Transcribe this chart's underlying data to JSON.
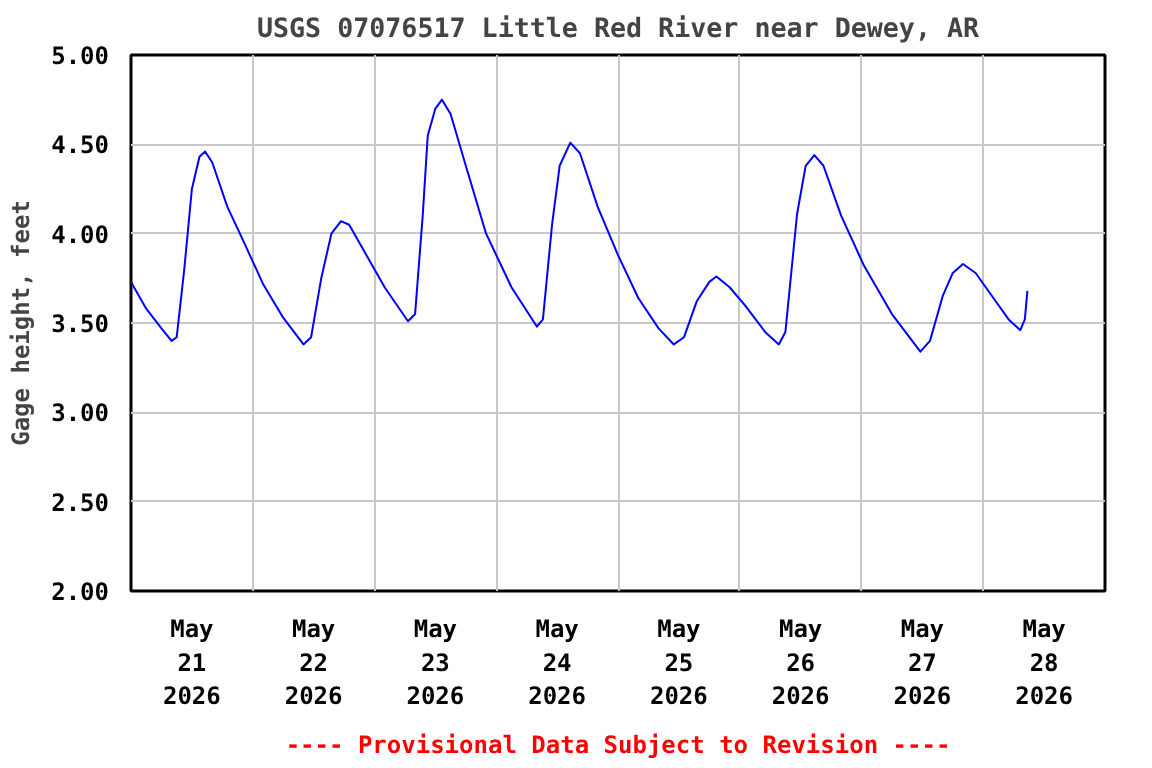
{
  "chart_data": {
    "type": "line",
    "title": "USGS 07076517 Little Red River near Dewey, AR",
    "ylabel": "Gage height, feet",
    "annotations": [
      "---- Provisional Data Subject to Revision ----"
    ],
    "x": [
      "2026-05-21T00:00",
      "2026-05-21T03:00",
      "2026-05-21T06:00",
      "2026-05-21T08:00",
      "2026-05-21T09:00",
      "2026-05-21T10:30",
      "2026-05-21T12:00",
      "2026-05-21T13:30",
      "2026-05-21T14:36",
      "2026-05-21T16:00",
      "2026-05-21T19:00",
      "2026-05-21T22:18",
      "2026-05-22T02:00",
      "2026-05-22T06:00",
      "2026-05-22T10:00",
      "2026-05-22T11:30",
      "2026-05-22T13:30",
      "2026-05-22T15:30",
      "2026-05-22T17:24",
      "2026-05-22T19:00",
      "2026-05-22T22:00",
      "2026-05-23T02:00",
      "2026-05-23T06:36",
      "2026-05-23T08:00",
      "2026-05-23T09:30",
      "2026-05-23T10:30",
      "2026-05-23T12:00",
      "2026-05-23T13:18",
      "2026-05-23T15:00",
      "2026-05-23T18:00",
      "2026-05-23T22:00",
      "2026-05-24T03:00",
      "2026-05-24T08:00",
      "2026-05-24T09:12",
      "2026-05-24T11:00",
      "2026-05-24T12:30",
      "2026-05-24T14:36",
      "2026-05-24T16:30",
      "2026-05-24T20:00",
      "2026-05-25T00:00",
      "2026-05-25T04:00",
      "2026-05-25T08:00",
      "2026-05-25T11:00",
      "2026-05-25T13:00",
      "2026-05-25T15:30",
      "2026-05-25T18:00",
      "2026-05-25T19:24",
      "2026-05-25T22:00",
      "2026-05-26T01:00",
      "2026-05-26T05:00",
      "2026-05-26T07:42",
      "2026-05-26T09:00",
      "2026-05-26T11:18",
      "2026-05-26T13:00",
      "2026-05-26T14:42",
      "2026-05-26T16:30",
      "2026-05-26T20:00",
      "2026-05-27T00:30",
      "2026-05-27T06:00",
      "2026-05-27T11:36",
      "2026-05-27T13:30",
      "2026-05-27T16:00",
      "2026-05-27T18:00",
      "2026-05-27T20:00",
      "2026-05-27T22:30",
      "2026-05-28T02:00",
      "2026-05-28T05:00",
      "2026-05-28T07:18",
      "2026-05-28T08:12",
      "2026-05-28T08:42"
    ],
    "series": [
      {
        "color": "#0000ff",
        "values": [
          3.73,
          3.58,
          3.47,
          3.4,
          3.42,
          3.8,
          4.25,
          4.43,
          4.46,
          4.4,
          4.15,
          3.95,
          3.72,
          3.53,
          3.38,
          3.42,
          3.75,
          4.0,
          4.07,
          4.05,
          3.9,
          3.7,
          3.51,
          3.55,
          4.1,
          4.55,
          4.7,
          4.75,
          4.67,
          4.38,
          4.0,
          3.7,
          3.48,
          3.52,
          4.05,
          4.38,
          4.51,
          4.45,
          4.15,
          3.88,
          3.64,
          3.47,
          3.38,
          3.42,
          3.62,
          3.73,
          3.76,
          3.7,
          3.6,
          3.45,
          3.38,
          3.45,
          4.11,
          4.38,
          4.44,
          4.38,
          4.1,
          3.82,
          3.55,
          3.34,
          3.4,
          3.65,
          3.78,
          3.83,
          3.78,
          3.64,
          3.52,
          3.46,
          3.52,
          3.68
        ]
      }
    ],
    "xlim": [
      "2026-05-21T00:00",
      "2026-05-29T00:00"
    ],
    "xticks": [
      {
        "value": "2026-05-21T12:00",
        "label": "May\n21\n2026"
      },
      {
        "value": "2026-05-22T12:00",
        "label": "May\n22\n2026"
      },
      {
        "value": "2026-05-23T12:00",
        "label": "May\n23\n2026"
      },
      {
        "value": "2026-05-24T12:00",
        "label": "May\n24\n2026"
      },
      {
        "value": "2026-05-25T12:00",
        "label": "May\n25\n2026"
      },
      {
        "value": "2026-05-26T12:00",
        "label": "May\n26\n2026"
      },
      {
        "value": "2026-05-27T12:00",
        "label": "May\n27\n2026"
      },
      {
        "value": "2026-05-28T12:00",
        "label": "May\n28\n2026"
      },
      {
        "value": "2026-05-22T00:00",
        "label": null
      },
      {
        "value": "2026-05-23T00:00",
        "label": null
      },
      {
        "value": "2026-05-24T00:00",
        "label": null
      },
      {
        "value": "2026-05-25T00:00",
        "label": null
      },
      {
        "value": "2026-05-26T00:00",
        "label": null
      },
      {
        "value": "2026-05-27T00:00",
        "label": null
      },
      {
        "value": "2026-05-28T00:00",
        "label": null
      }
    ],
    "ylim": [
      2.0,
      5.0
    ],
    "yticks": [
      {
        "value": 2.0,
        "label": "2.00"
      },
      {
        "value": 2.5,
        "label": "2.50"
      },
      {
        "value": 3.0,
        "label": "3.00"
      },
      {
        "value": 3.5,
        "label": "3.50"
      },
      {
        "value": 4.0,
        "label": "4.00"
      },
      {
        "value": 4.5,
        "label": "4.50"
      },
      {
        "value": 5.0,
        "label": "5.00"
      }
    ],
    "grid": true,
    "marker": "none",
    "line_style": "solid"
  }
}
